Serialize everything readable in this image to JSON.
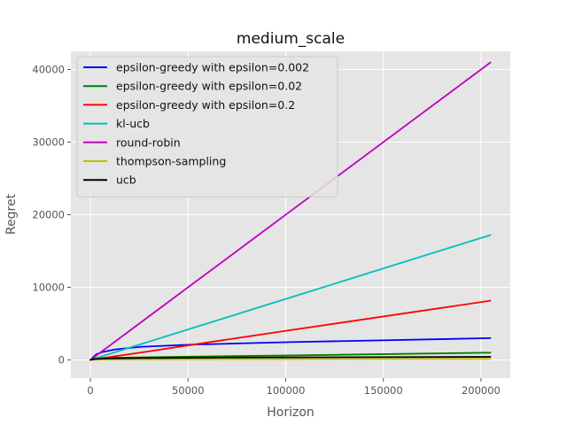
{
  "chart_data": {
    "type": "line",
    "title": "medium_scale",
    "xlabel": "Horizon",
    "ylabel": "Regret",
    "xlim": [
      -10000,
      215000
    ],
    "ylim": [
      -2500,
      42500
    ],
    "x_ticks": [
      0,
      50000,
      100000,
      150000,
      200000
    ],
    "y_ticks": [
      0,
      10000,
      20000,
      30000,
      40000
    ],
    "grid": true,
    "legend_position": "top-left",
    "series": [
      {
        "name": "epsilon-greedy with epsilon=0.002",
        "color": "#0000ff",
        "x": [
          0,
          800,
          1600,
          3200,
          6400,
          12800,
          25600,
          51200,
          102400,
          204800
        ],
        "y": [
          0,
          200,
          420,
          800,
          1100,
          1450,
          1800,
          2100,
          2450,
          3000
        ]
      },
      {
        "name": "epsilon-greedy with epsilon=0.02",
        "color": "#008000",
        "x": [
          0,
          800,
          1600,
          3200,
          6400,
          12800,
          25600,
          51200,
          102400,
          204800
        ],
        "y": [
          0,
          100,
          150,
          200,
          250,
          300,
          350,
          450,
          620,
          1000
        ]
      },
      {
        "name": "epsilon-greedy with epsilon=0.2",
        "color": "#ff0000",
        "x": [
          0,
          800,
          1600,
          3200,
          6400,
          12800,
          25600,
          51200,
          102400,
          204800
        ],
        "y": [
          0,
          80,
          120,
          170,
          270,
          510,
          1010,
          2050,
          4100,
          8150
        ]
      },
      {
        "name": "kl-ucb",
        "color": "#00bfbf",
        "x": [
          0,
          800,
          1600,
          3200,
          6400,
          12800,
          25600,
          51200,
          102400,
          204800
        ],
        "y": [
          0,
          80,
          150,
          280,
          540,
          1080,
          2150,
          4300,
          8600,
          17200
        ]
      },
      {
        "name": "round-robin",
        "color": "#bf00bf",
        "x": [
          0,
          800,
          1600,
          3200,
          6400,
          12800,
          25600,
          51200,
          102400,
          204800
        ],
        "y": [
          0,
          160,
          320,
          640,
          1280,
          2560,
          5120,
          10240,
          20480,
          40960
        ]
      },
      {
        "name": "thompson-sampling",
        "color": "#bfbf00",
        "x": [
          0,
          800,
          1600,
          3200,
          6400,
          12800,
          25600,
          51200,
          102400,
          204800
        ],
        "y": [
          0,
          20,
          30,
          40,
          50,
          60,
          70,
          80,
          100,
          130
        ]
      },
      {
        "name": "ucb",
        "color": "#000000",
        "x": [
          0,
          800,
          1600,
          3200,
          6400,
          12800,
          25600,
          51200,
          102400,
          204800
        ],
        "y": [
          0,
          60,
          100,
          140,
          180,
          220,
          260,
          300,
          350,
          420
        ]
      }
    ]
  }
}
